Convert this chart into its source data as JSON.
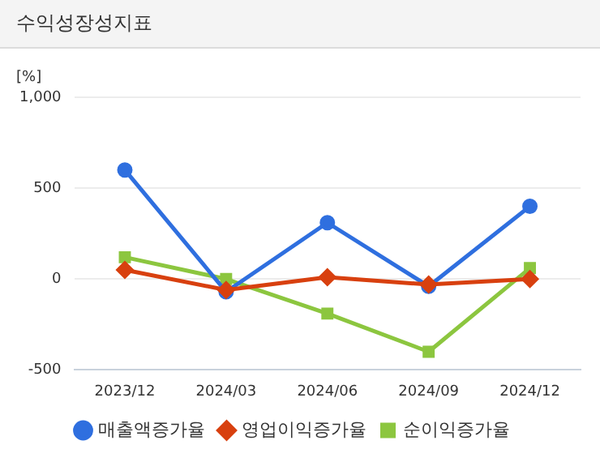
{
  "chart_data": {
    "type": "line",
    "title": "수익성장성지표",
    "ylabel": "[%]",
    "categories": [
      "2023/12",
      "2024/03",
      "2024/06",
      "2024/09",
      "2024/12"
    ],
    "series": [
      {
        "name": "매출액증가율",
        "color": "#2f6fdf",
        "marker": "circle",
        "values": [
          600,
          -70,
          310,
          -40,
          400
        ]
      },
      {
        "name": "영업이익증가율",
        "color": "#d8400f",
        "marker": "diamond",
        "values": [
          50,
          -60,
          10,
          -30,
          0
        ]
      },
      {
        "name": "순이익증가율",
        "color": "#8cc63f",
        "marker": "square",
        "values": [
          120,
          0,
          -190,
          -400,
          60
        ]
      }
    ],
    "ylim": [
      -500,
      1000
    ],
    "yticks": [
      -500,
      0,
      500,
      {
        "value": 1000,
        "label": "1,000"
      }
    ],
    "grid": "y",
    "legend": "bottom",
    "line_style": "solid"
  }
}
